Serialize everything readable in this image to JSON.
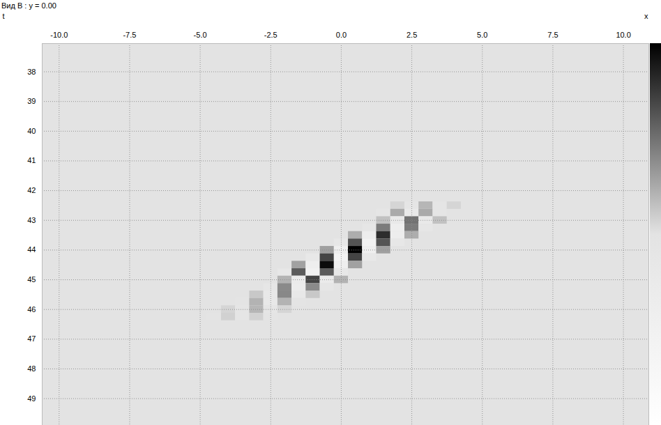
{
  "chart_data": {
    "type": "heatmap",
    "title": "Вид В : y = 0.00",
    "x_label": "x",
    "y_label": "t",
    "xlim": [
      -10.6,
      10.9
    ],
    "ylim": [
      37.05,
      49.9
    ],
    "xticks": [
      {
        "value": -10,
        "label": "-10.0"
      },
      {
        "value": -7.5,
        "label": "-7.5"
      },
      {
        "value": -5,
        "label": "-5.0"
      },
      {
        "value": -2.5,
        "label": "-2.5"
      },
      {
        "value": 0,
        "label": "0.0"
      },
      {
        "value": 2.5,
        "label": "2.5"
      },
      {
        "value": 5,
        "label": "5.0"
      },
      {
        "value": 7.5,
        "label": "7.5"
      },
      {
        "value": 10,
        "label": "10.0"
      }
    ],
    "yticks": [
      38,
      39,
      40,
      41,
      42,
      43,
      44,
      45,
      46,
      47,
      48,
      49
    ],
    "grid": true,
    "colorbar": {
      "range": [
        -1,
        1
      ]
    },
    "cells": [
      {
        "t": 42.5,
        "x": [
          2,
          2.5,
          3,
          3.5,
          4
        ],
        "values": [
          0.06,
          -0.08,
          0.2,
          -0.08,
          0.06
        ]
      },
      {
        "t": 42.75,
        "x": [
          1.5,
          2,
          2.5,
          3,
          3.5
        ],
        "values": [
          -0.06,
          0.25,
          -0.21,
          0.25,
          -0.06
        ]
      },
      {
        "t": 43.0,
        "x": [
          1.5,
          2,
          2.5,
          3,
          3.5
        ],
        "values": [
          0.15,
          -0.21,
          0.5,
          -0.21,
          0.15
        ]
      },
      {
        "t": 43.25,
        "x": [
          1,
          1.5,
          2,
          2.5,
          3
        ],
        "values": [
          -0.12,
          0.46,
          -0.39,
          0.46,
          -0.12
        ]
      },
      {
        "t": 43.5,
        "x": [
          0.5,
          1,
          1.5,
          2,
          2.5
        ],
        "values": [
          0.24,
          -0.34,
          0.8,
          -0.34,
          0.24
        ]
      },
      {
        "t": 43.75,
        "x": [
          0,
          0.5,
          1,
          1.5,
          2
        ],
        "values": [
          -0.16,
          0.63,
          -0.54,
          0.63,
          -0.16
        ]
      },
      {
        "t": 44.0,
        "x": [
          -0.5,
          0,
          0.5,
          1,
          1.5
        ],
        "values": [
          0.3,
          -0.42,
          1,
          -0.42,
          0.3
        ]
      },
      {
        "t": 44.25,
        "x": [
          -1,
          -0.5,
          0,
          0.5,
          1
        ],
        "values": [
          -0.18,
          0.7,
          -0.6,
          0.7,
          -0.18
        ]
      },
      {
        "t": 44.5,
        "x": [
          -1.5,
          -1,
          -0.5,
          0,
          0.5
        ],
        "values": [
          0.29,
          -0.4,
          0.95,
          -0.4,
          0.29
        ]
      },
      {
        "t": 44.75,
        "x": [
          -2,
          -1.5,
          -1,
          -0.5,
          0
        ],
        "values": [
          -0.15,
          0.6,
          -0.51,
          0.6,
          -0.15
        ]
      },
      {
        "t": 45.0,
        "x": [
          -2,
          -1.5,
          -1,
          -0.5,
          0
        ],
        "values": [
          0.21,
          -0.29,
          0.7,
          -0.29,
          0.21
        ]
      },
      {
        "t": 45.25,
        "x": [
          -2.5,
          -2,
          -1.5,
          -1,
          -0.5
        ],
        "values": [
          -0.1,
          0.39,
          -0.33,
          0.39,
          -0.1
        ]
      },
      {
        "t": 45.5,
        "x": [
          -3,
          -2.5,
          -2,
          -1.5,
          -1
        ],
        "values": [
          0.12,
          -0.17,
          0.4,
          -0.17,
          0.12
        ]
      },
      {
        "t": 45.75,
        "x": [
          -3.5,
          -3,
          -2.5,
          -2,
          -1.5
        ],
        "values": [
          -0.05,
          0.21,
          -0.18,
          0.21,
          -0.05
        ]
      },
      {
        "t": 46.0,
        "x": [
          -4,
          -3.5,
          -3,
          -2.5,
          -2
        ],
        "values": [
          0.06,
          -0.08,
          0.2,
          -0.08,
          0.06
        ]
      },
      {
        "t": 46.25,
        "x": [
          -4.5,
          -4,
          -3.5,
          -3,
          -2.5
        ],
        "values": [
          -0.02,
          0.08,
          -0.07,
          0.08,
          -0.02
        ]
      }
    ]
  }
}
